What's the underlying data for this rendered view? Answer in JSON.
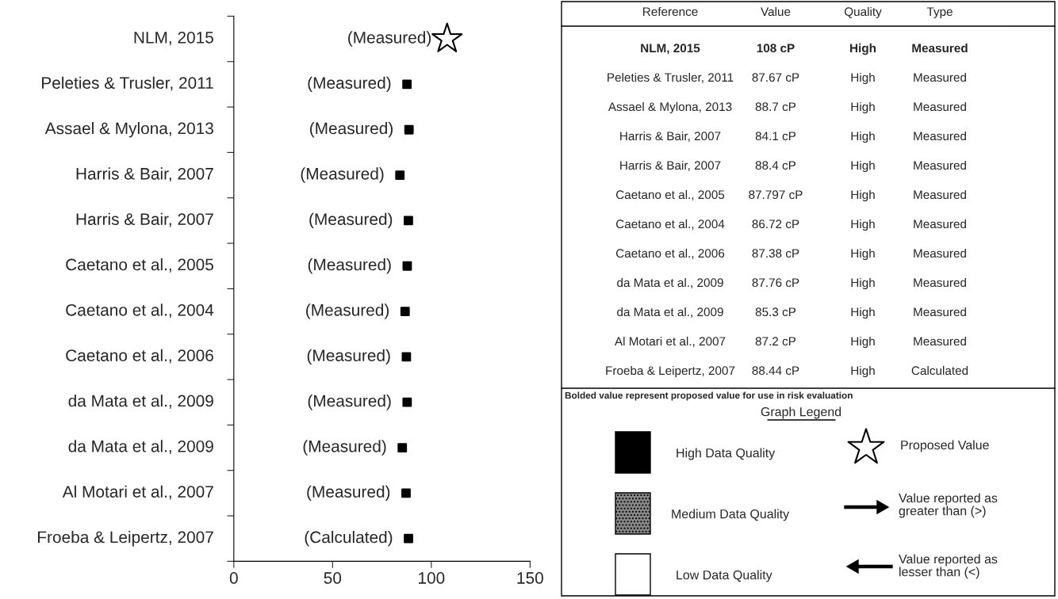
{
  "chart_data": [
    {
      "type": "scatter",
      "categories": [
        "NLM, 2015",
        "Peleties & Trusler, 2011",
        "Assael & Mylona, 2013",
        "Harris & Bair, 2007",
        "Harris & Bair, 2007",
        "Caetano et al., 2005",
        "Caetano et al., 2004",
        "Caetano et al., 2006",
        "da Mata et al., 2009",
        "da Mata et al., 2009",
        "Al Motari et al., 2007",
        "Froeba & Leipertz, 2007"
      ],
      "orientation": "horizontal",
      "series": [
        {
          "color": "#000000",
          "marker": "star",
          "values": [
            108,
            null,
            null,
            null,
            null,
            null,
            null,
            null,
            null,
            null,
            null,
            null
          ]
        },
        {
          "color": "#000000",
          "marker": "square",
          "values": [
            null,
            87.67,
            88.7,
            84.1,
            88.4,
            87.797,
            86.72,
            87.38,
            87.76,
            85.3,
            87.2,
            88.44
          ]
        }
      ],
      "xlim": [
        0,
        150
      ],
      "xticks": [
        0,
        50,
        100,
        150
      ],
      "grid": false,
      "legend": false,
      "annotations": [
        "(Measured)",
        "(Measured)",
        "(Measured)",
        "(Measured)",
        "(Measured)",
        "(Measured)",
        "(Measured)",
        "(Measured)",
        "(Measured)",
        "(Measured)",
        "(Measured)",
        "(Calculated)"
      ]
    },
    {
      "type": "other",
      "annotations": [
        "Reference",
        "Value",
        "Quality",
        "Type",
        "NLM, 2015",
        "108 cP",
        "High",
        "Measured",
        "Peleties & Trusler, 2011",
        "87.67 cP",
        "High",
        "Measured",
        "Assael & Mylona, 2013",
        "88.7 cP",
        "High",
        "Measured",
        "Harris & Bair, 2007",
        "84.1 cP",
        "High",
        "Measured",
        "Harris & Bair, 2007",
        "88.4 cP",
        "High",
        "Measured",
        "Caetano et al., 2005",
        "87.797 cP",
        "High",
        "Measured",
        "Caetano et al., 2004",
        "86.72 cP",
        "High",
        "Measured",
        "Caetano et al., 2006",
        "87.38 cP",
        "High",
        "Measured",
        "da Mata et al., 2009",
        "87.76 cP",
        "High",
        "Measured",
        "da Mata et al., 2009",
        "85.3 cP",
        "High",
        "Measured",
        "Al Motari et al., 2007",
        "87.2 cP",
        "High",
        "Measured",
        "Froeba & Leipertz, 2007",
        "88.44 cP",
        "High",
        "Calculated",
        "Bolded value represent proposed value for use in risk evaluation",
        "Graph Legend",
        "High Data Quality",
        "Medium Data Quality",
        "Low Data Quality",
        "Proposed Value",
        "Value reported as\ngreater than (>)",
        "Value reported as\nlesser than (<)"
      ]
    }
  ]
}
